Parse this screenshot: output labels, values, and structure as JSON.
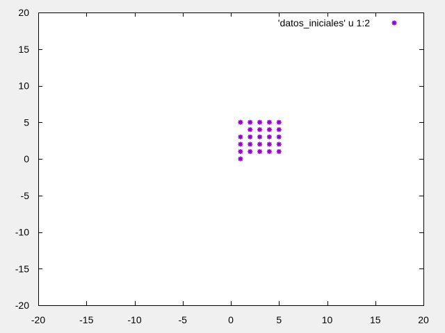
{
  "chart_data": {
    "type": "scatter",
    "title": "",
    "xlabel": "",
    "ylabel": "",
    "xlim": [
      -20,
      20
    ],
    "ylim": [
      -20,
      20
    ],
    "x_ticks": [
      -20,
      -15,
      -10,
      -5,
      0,
      5,
      10,
      15,
      20
    ],
    "y_ticks": [
      -20,
      -15,
      -10,
      -5,
      0,
      5,
      10,
      15,
      20
    ],
    "x_tick_labels": [
      "-20",
      "-15",
      "-10",
      "-5",
      "0",
      "5",
      "10",
      "15",
      "20"
    ],
    "y_tick_labels": [
      "-20",
      "-15",
      "-10",
      "-5",
      "0",
      "5",
      "10",
      "15",
      "20"
    ],
    "grid": false,
    "legend_position": "top-right",
    "series": [
      {
        "name": "'datos_iniciales' u 1:2",
        "color": "#9400d3",
        "marker": "asterisk",
        "points": [
          [
            1,
            0
          ],
          [
            1,
            1
          ],
          [
            1,
            2
          ],
          [
            1,
            3
          ],
          [
            1,
            5
          ],
          [
            2,
            1
          ],
          [
            2,
            2
          ],
          [
            2,
            3
          ],
          [
            2,
            4
          ],
          [
            2,
            5
          ],
          [
            3,
            1
          ],
          [
            3,
            2
          ],
          [
            3,
            3
          ],
          [
            3,
            4
          ],
          [
            3,
            5
          ],
          [
            4,
            1
          ],
          [
            4,
            2
          ],
          [
            4,
            3
          ],
          [
            4,
            4
          ],
          [
            4,
            5
          ],
          [
            5,
            1
          ],
          [
            5,
            2
          ],
          [
            5,
            3
          ],
          [
            5,
            4
          ],
          [
            5,
            5
          ]
        ]
      }
    ]
  }
}
